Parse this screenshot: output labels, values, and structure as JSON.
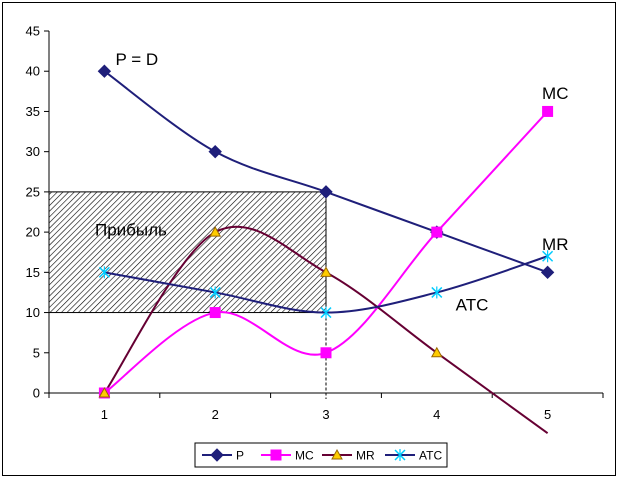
{
  "chart_data": {
    "type": "line",
    "x": [
      1,
      2,
      3,
      4,
      5
    ],
    "xlim": [
      0.5,
      5.5
    ],
    "ylim": [
      0,
      45
    ],
    "yticks": [
      0,
      5,
      10,
      15,
      20,
      25,
      30,
      35,
      40,
      45
    ],
    "grid": false,
    "smooth": true,
    "series": [
      {
        "name": "P",
        "values": [
          40,
          30,
          25,
          20,
          15
        ],
        "color": "#1f1f7a",
        "marker": "diamond"
      },
      {
        "name": "MC",
        "values": [
          0,
          10,
          5,
          20,
          35
        ],
        "color": "#ff00ff",
        "marker": "square"
      },
      {
        "name": "MR",
        "values": [
          0,
          20,
          15,
          5,
          -5
        ],
        "color": "#660033",
        "marker": "triangle"
      },
      {
        "name": "ATC",
        "values": [
          15,
          12.5,
          10,
          12.5,
          17
        ],
        "color": "#1f1f7a",
        "marker": "star"
      }
    ],
    "profit_region": {
      "label": "Прибыль",
      "x": [
        0.5,
        3
      ],
      "y": [
        10,
        25
      ]
    },
    "annotations": [
      {
        "text": "P = D",
        "x": 1.1,
        "y": 41.5
      },
      {
        "text": "MC",
        "x": 4.95,
        "y": 37.3
      },
      {
        "text": "MR",
        "x": 4.95,
        "y": 18.5
      },
      {
        "text": "ATC",
        "x": 4.17,
        "y": 11.0
      }
    ],
    "legend": {
      "position": "bottom",
      "entries": [
        "P",
        "MC",
        "MR",
        "ATC"
      ]
    }
  }
}
